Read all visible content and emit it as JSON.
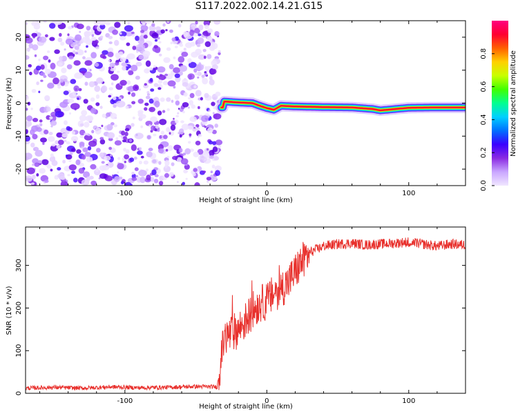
{
  "page": {
    "title": "S117.2022.002.14.21.G15"
  },
  "chart_data": [
    {
      "type": "heatmap",
      "title": "",
      "xlabel": "Height of straight line (km)",
      "ylabel": "Frequency (Hz)",
      "xlim": [
        -170,
        140
      ],
      "ylim": [
        -25,
        25
      ],
      "xticks": [
        -100,
        0,
        100
      ],
      "yticks": [
        -20,
        -10,
        0,
        10,
        20
      ],
      "colorbar": {
        "label": "Normalized spectral amplitude",
        "range": [
          0,
          1
        ],
        "ticks": [
          0.0,
          0.2,
          0.4,
          0.6,
          0.8
        ],
        "colors": [
          "#f0e6ff",
          "#c9a6ff",
          "#8a2be2",
          "#3a00ff",
          "#0070ff",
          "#00d0ff",
          "#00ff90",
          "#40ff00",
          "#c8ff00",
          "#ffd000",
          "#ff6000",
          "#ff0030",
          "#ff0080"
        ]
      },
      "noise_region_x": [
        -170,
        -33
      ],
      "signal": {
        "x_start": -32,
        "x_end": 140,
        "frequency_hz": [
          [
            -30,
            0.5
          ],
          [
            -20,
            0.2
          ],
          [
            -10,
            0.0
          ],
          [
            -5,
            -0.8
          ],
          [
            0,
            -1.5
          ],
          [
            5,
            -2.0
          ],
          [
            10,
            -0.8
          ],
          [
            20,
            -1.0
          ],
          [
            40,
            -1.2
          ],
          [
            60,
            -1.3
          ],
          [
            75,
            -1.8
          ],
          [
            80,
            -2.2
          ],
          [
            90,
            -1.8
          ],
          [
            100,
            -1.4
          ],
          [
            120,
            -1.3
          ],
          [
            140,
            -1.3
          ]
        ],
        "amplitude_note": "strong (red) along trace for x > -30 km"
      }
    },
    {
      "type": "line",
      "title": "",
      "xlabel": "Height of straight line (km)",
      "ylabel": "SNR (10 * v/v)",
      "xlim": [
        -170,
        140
      ],
      "ylim": [
        0,
        390
      ],
      "xticks": [
        -100,
        0,
        100
      ],
      "yticks": [
        0,
        100,
        200,
        300
      ],
      "color": "#e8302c",
      "x": [
        -170,
        -150,
        -130,
        -110,
        -90,
        -70,
        -50,
        -35,
        -30,
        -25,
        -20,
        -15,
        -10,
        -5,
        0,
        5,
        10,
        15,
        20,
        25,
        30,
        40,
        50,
        60,
        70,
        80,
        90,
        100,
        110,
        120,
        130,
        140
      ],
      "y": [
        12,
        14,
        12,
        15,
        13,
        14,
        16,
        15,
        130,
        140,
        150,
        170,
        195,
        210,
        215,
        235,
        245,
        260,
        285,
        310,
        330,
        345,
        350,
        352,
        348,
        350,
        352,
        355,
        350,
        345,
        350,
        348
      ]
    }
  ]
}
